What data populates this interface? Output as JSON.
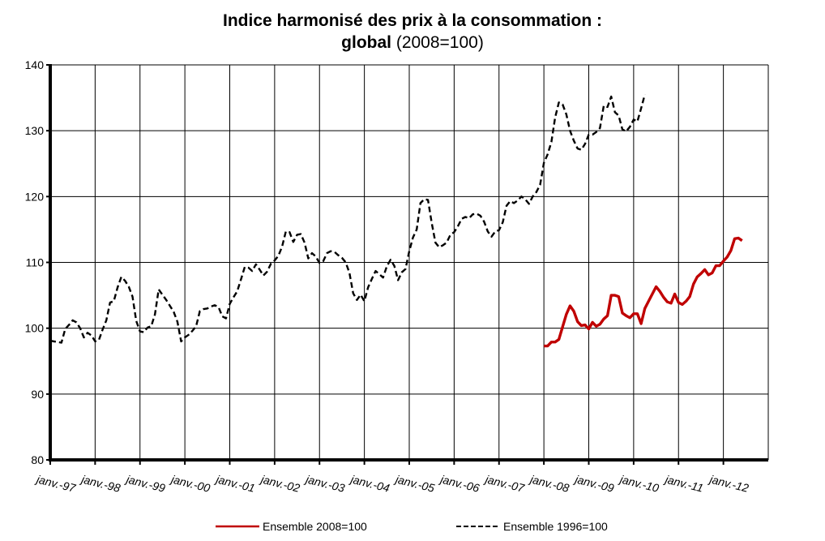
{
  "chart_data": {
    "type": "line",
    "title_line1": "Indice harmonisé des prix à la consommation :",
    "title_line2_bold": "global",
    "title_line2_normal": " (2008=100)",
    "xlabel": "",
    "ylabel": "",
    "ylim": [
      80,
      140
    ],
    "yticks": [
      80,
      90,
      100,
      110,
      120,
      130,
      140
    ],
    "xlim": [
      "1997-01",
      "2013-01"
    ],
    "x_tick_labels": [
      "janv.-97",
      "janv.-98",
      "janv.-99",
      "janv.-00",
      "janv.-01",
      "janv.-02",
      "janv.-03",
      "janv.-04",
      "janv.-05",
      "janv.-06",
      "janv.-07",
      "janv.-08",
      "janv.-09",
      "janv.-10",
      "janv.-11",
      "janv.-12"
    ],
    "x_tick_dates": [
      "1997-01",
      "1998-01",
      "1999-01",
      "2000-01",
      "2001-01",
      "2002-01",
      "2003-01",
      "2004-01",
      "2005-01",
      "2006-01",
      "2007-01",
      "2008-01",
      "2009-01",
      "2010-01",
      "2011-01",
      "2012-01"
    ],
    "grid": "vertical-and-horizontal",
    "legend_position": "bottom",
    "series": [
      {
        "name": "Ensemble 2008=100",
        "color": "#c00000",
        "style": "solid",
        "points": [
          [
            "2008-01",
            97.3
          ],
          [
            "2008-02",
            97.3
          ],
          [
            "2008-03",
            97.9
          ],
          [
            "2008-04",
            97.9
          ],
          [
            "2008-05",
            98.3
          ],
          [
            "2008-06",
            100.2
          ],
          [
            "2008-07",
            102.1
          ],
          [
            "2008-08",
            103.4
          ],
          [
            "2008-09",
            102.6
          ],
          [
            "2008-10",
            101.0
          ],
          [
            "2008-11",
            100.4
          ],
          [
            "2008-12",
            100.5
          ],
          [
            "2009-01",
            99.9
          ],
          [
            "2009-02",
            100.9
          ],
          [
            "2009-03",
            100.3
          ],
          [
            "2009-04",
            100.6
          ],
          [
            "2009-05",
            101.4
          ],
          [
            "2009-06",
            101.9
          ],
          [
            "2009-07",
            105.0
          ],
          [
            "2009-08",
            105.0
          ],
          [
            "2009-09",
            104.8
          ],
          [
            "2009-10",
            102.3
          ],
          [
            "2009-11",
            101.9
          ],
          [
            "2009-12",
            101.6
          ],
          [
            "2010-01",
            102.2
          ],
          [
            "2010-02",
            102.2
          ],
          [
            "2010-03",
            100.7
          ],
          [
            "2010-04",
            103.0
          ],
          [
            "2010-05",
            104.1
          ],
          [
            "2010-06",
            105.2
          ],
          [
            "2010-07",
            106.3
          ],
          [
            "2010-08",
            105.6
          ],
          [
            "2010-09",
            104.7
          ],
          [
            "2010-10",
            104.0
          ],
          [
            "2010-11",
            103.8
          ],
          [
            "2010-12",
            105.2
          ],
          [
            "2011-01",
            103.9
          ],
          [
            "2011-02",
            103.6
          ],
          [
            "2011-03",
            104.1
          ],
          [
            "2011-04",
            104.8
          ],
          [
            "2011-05",
            106.7
          ],
          [
            "2011-06",
            107.8
          ],
          [
            "2011-07",
            108.3
          ],
          [
            "2011-08",
            108.9
          ],
          [
            "2011-09",
            108.1
          ],
          [
            "2011-10",
            108.4
          ],
          [
            "2011-11",
            109.5
          ],
          [
            "2011-12",
            109.5
          ],
          [
            "2012-01",
            110.2
          ],
          [
            "2012-02",
            110.8
          ],
          [
            "2012-03",
            111.8
          ],
          [
            "2012-04",
            113.6
          ],
          [
            "2012-05",
            113.7
          ],
          [
            "2012-06",
            113.3
          ]
        ]
      },
      {
        "name": "Ensemble 1996=100",
        "color": "#000000",
        "style": "dashed",
        "points": [
          [
            "1997-01",
            98.1
          ],
          [
            "1997-02",
            98.0
          ],
          [
            "1997-03",
            97.9
          ],
          [
            "1997-04",
            97.8
          ],
          [
            "1997-05",
            99.9
          ],
          [
            "1997-06",
            100.5
          ],
          [
            "1997-07",
            101.2
          ],
          [
            "1997-08",
            100.9
          ],
          [
            "1997-09",
            100.0
          ],
          [
            "1997-10",
            98.6
          ],
          [
            "1997-11",
            99.3
          ],
          [
            "1997-12",
            98.9
          ],
          [
            "1998-01",
            98.0
          ],
          [
            "1998-02",
            98.2
          ],
          [
            "1998-03",
            99.8
          ],
          [
            "1998-04",
            101.2
          ],
          [
            "1998-05",
            103.9
          ],
          [
            "1998-06",
            104.1
          ],
          [
            "1998-07",
            106.2
          ],
          [
            "1998-08",
            107.8
          ],
          [
            "1998-09",
            107.2
          ],
          [
            "1998-10",
            106.3
          ],
          [
            "1998-11",
            104.8
          ],
          [
            "1998-12",
            101.1
          ],
          [
            "1999-01",
            99.5
          ],
          [
            "1999-02",
            99.4
          ],
          [
            "1999-03",
            100.1
          ],
          [
            "1999-04",
            100.3
          ],
          [
            "1999-05",
            102.1
          ],
          [
            "1999-06",
            105.9
          ],
          [
            "1999-07",
            105.1
          ],
          [
            "1999-08",
            104.3
          ],
          [
            "1999-09",
            103.4
          ],
          [
            "1999-10",
            102.5
          ],
          [
            "1999-11",
            101.0
          ],
          [
            "1999-12",
            98.0
          ],
          [
            "2000-01",
            98.6
          ],
          [
            "2000-02",
            99.0
          ],
          [
            "2000-03",
            99.6
          ],
          [
            "2000-04",
            100.3
          ],
          [
            "2000-05",
            102.6
          ],
          [
            "2000-06",
            102.9
          ],
          [
            "2000-07",
            103.0
          ],
          [
            "2000-08",
            103.3
          ],
          [
            "2000-09",
            103.5
          ],
          [
            "2000-10",
            103.2
          ],
          [
            "2000-11",
            101.8
          ],
          [
            "2000-12",
            101.5
          ],
          [
            "2001-01",
            103.7
          ],
          [
            "2001-02",
            104.7
          ],
          [
            "2001-03",
            105.6
          ],
          [
            "2001-04",
            107.4
          ],
          [
            "2001-05",
            109.3
          ],
          [
            "2001-06",
            109.2
          ],
          [
            "2001-07",
            108.7
          ],
          [
            "2001-08",
            109.7
          ],
          [
            "2001-09",
            108.9
          ],
          [
            "2001-10",
            108.0
          ],
          [
            "2001-11",
            108.6
          ],
          [
            "2001-12",
            109.8
          ],
          [
            "2002-01",
            110.3
          ],
          [
            "2002-02",
            111.0
          ],
          [
            "2002-03",
            112.4
          ],
          [
            "2002-04",
            114.7
          ],
          [
            "2002-05",
            114.6
          ],
          [
            "2002-06",
            113.1
          ],
          [
            "2002-07",
            114.2
          ],
          [
            "2002-08",
            114.3
          ],
          [
            "2002-09",
            113.0
          ],
          [
            "2002-10",
            110.6
          ],
          [
            "2002-11",
            111.4
          ],
          [
            "2002-12",
            110.9
          ],
          [
            "2003-01",
            109.9
          ],
          [
            "2003-02",
            110.2
          ],
          [
            "2003-03",
            111.4
          ],
          [
            "2003-04",
            111.7
          ],
          [
            "2003-05",
            111.6
          ],
          [
            "2003-06",
            111.1
          ],
          [
            "2003-07",
            110.7
          ],
          [
            "2003-08",
            110.0
          ],
          [
            "2003-09",
            108.4
          ],
          [
            "2003-10",
            105.3
          ],
          [
            "2003-11",
            104.3
          ],
          [
            "2003-12",
            105.1
          ],
          [
            "2004-01",
            104.1
          ],
          [
            "2004-02",
            106.2
          ],
          [
            "2004-03",
            107.5
          ],
          [
            "2004-04",
            108.7
          ],
          [
            "2004-05",
            108.2
          ],
          [
            "2004-06",
            107.7
          ],
          [
            "2004-07",
            109.4
          ],
          [
            "2004-08",
            110.4
          ],
          [
            "2004-09",
            109.5
          ],
          [
            "2004-10",
            107.3
          ],
          [
            "2004-11",
            108.5
          ],
          [
            "2004-12",
            109.0
          ],
          [
            "2005-01",
            111.7
          ],
          [
            "2005-02",
            113.8
          ],
          [
            "2005-03",
            115.0
          ],
          [
            "2005-04",
            119.0
          ],
          [
            "2005-05",
            119.6
          ],
          [
            "2005-06",
            119.5
          ],
          [
            "2005-07",
            116.0
          ],
          [
            "2005-08",
            113.0
          ],
          [
            "2005-09",
            112.3
          ],
          [
            "2005-10",
            112.6
          ],
          [
            "2005-11",
            113.0
          ],
          [
            "2005-12",
            114.2
          ],
          [
            "2006-01",
            114.6
          ],
          [
            "2006-02",
            115.5
          ],
          [
            "2006-03",
            116.6
          ],
          [
            "2006-04",
            116.9
          ],
          [
            "2006-05",
            116.7
          ],
          [
            "2006-06",
            117.3
          ],
          [
            "2006-07",
            117.4
          ],
          [
            "2006-08",
            117.1
          ],
          [
            "2006-09",
            116.2
          ],
          [
            "2006-10",
            114.7
          ],
          [
            "2006-11",
            113.9
          ],
          [
            "2006-12",
            114.7
          ],
          [
            "2007-01",
            114.9
          ],
          [
            "2007-02",
            116.1
          ],
          [
            "2007-03",
            118.6
          ],
          [
            "2007-04",
            119.3
          ],
          [
            "2007-05",
            119.0
          ],
          [
            "2007-06",
            119.4
          ],
          [
            "2007-07",
            120.0
          ],
          [
            "2007-08",
            119.6
          ],
          [
            "2007-09",
            118.9
          ],
          [
            "2007-10",
            120.0
          ],
          [
            "2007-11",
            120.7
          ],
          [
            "2007-12",
            121.8
          ],
          [
            "2008-01",
            125.1
          ],
          [
            "2008-02",
            126.4
          ],
          [
            "2008-03",
            128.3
          ],
          [
            "2008-04",
            132.0
          ],
          [
            "2008-05",
            134.3
          ],
          [
            "2008-06",
            134.0
          ],
          [
            "2008-07",
            132.5
          ],
          [
            "2008-08",
            130.0
          ],
          [
            "2008-09",
            128.5
          ],
          [
            "2008-10",
            127.3
          ],
          [
            "2008-11",
            127.1
          ],
          [
            "2008-12",
            128.0
          ],
          [
            "2009-01",
            129.4
          ],
          [
            "2009-02",
            129.4
          ],
          [
            "2009-03",
            129.8
          ],
          [
            "2009-04",
            130.4
          ],
          [
            "2009-05",
            133.8
          ],
          [
            "2009-06",
            133.6
          ],
          [
            "2009-07",
            135.2
          ],
          [
            "2009-08",
            132.8
          ],
          [
            "2009-09",
            132.3
          ],
          [
            "2009-10",
            130.2
          ],
          [
            "2009-11",
            129.9
          ],
          [
            "2009-12",
            130.6
          ],
          [
            "2010-01",
            131.7
          ],
          [
            "2010-02",
            131.4
          ],
          [
            "2010-03",
            133.4
          ],
          [
            "2010-04",
            135.5
          ]
        ]
      }
    ]
  }
}
